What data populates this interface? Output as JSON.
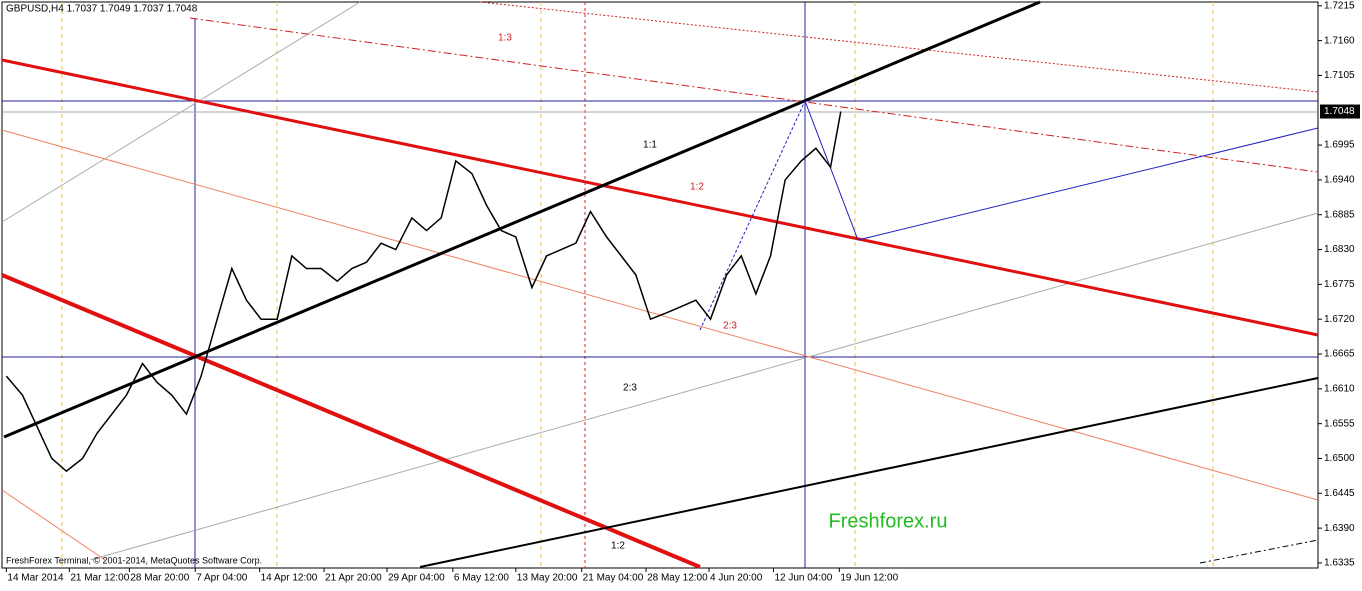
{
  "chart_data": {
    "type": "line",
    "title": "GBPUSD,H4  1.7037 1.7049 1.7037 1.7048",
    "footer": "FreshForex Terminal, © 2001-2014, MetaQuotes Software Corp.",
    "watermark": "Freshforex.ru",
    "annotations": [
      "1:3",
      "1:1",
      "1:2",
      "2:3",
      "2:3",
      "1:2"
    ],
    "last_price": 1.7048,
    "color": "#000000",
    "x": [
      3,
      14,
      24,
      34,
      44,
      55,
      65,
      75,
      85,
      96,
      106,
      116,
      126,
      136,
      147,
      157,
      167,
      177,
      188,
      198,
      208,
      218,
      229,
      239,
      249,
      259,
      269,
      280,
      290,
      300,
      310,
      321,
      331,
      341,
      351,
      362,
      372,
      382,
      392,
      402,
      413,
      423,
      433,
      443,
      454,
      464,
      474,
      484,
      495,
      505,
      515,
      525,
      535,
      546,
      556,
      566,
      573
    ],
    "values": [
      1.663,
      1.66,
      1.655,
      1.65,
      1.648,
      1.65,
      1.654,
      1.657,
      1.66,
      1.665,
      1.662,
      1.66,
      1.657,
      1.663,
      1.672,
      1.68,
      1.675,
      1.672,
      1.672,
      1.682,
      1.68,
      1.68,
      1.678,
      1.68,
      1.681,
      1.684,
      1.683,
      1.688,
      1.686,
      1.688,
      1.697,
      1.695,
      1.69,
      1.686,
      1.685,
      1.677,
      1.682,
      1.683,
      1.684,
      1.689,
      1.685,
      1.682,
      1.679,
      1.672,
      1.673,
      1.674,
      1.675,
      1.672,
      1.679,
      1.682,
      1.676,
      1.682,
      1.694,
      1.697,
      1.699,
      1.696,
      1.7048
    ],
    "xlim": [
      0,
      899
    ],
    "xticks": [
      {
        "value": 3,
        "label": "14 Mar 2014"
      },
      {
        "value": 46,
        "label": "21 Mar 12:00"
      },
      {
        "value": 87,
        "label": "28 Mar 20:00"
      },
      {
        "value": 132,
        "label": "7 Apr 04:00"
      },
      {
        "value": 176,
        "label": "14 Apr 12:00"
      },
      {
        "value": 220,
        "label": "21 Apr 20:00"
      },
      {
        "value": 263,
        "label": "29 Apr 04:00"
      },
      {
        "value": 308,
        "label": "6 May 12:00"
      },
      {
        "value": 351,
        "label": "13 May 20:00"
      },
      {
        "value": 396,
        "label": "21 May 04:00"
      },
      {
        "value": 440,
        "label": "28 May 12:00"
      },
      {
        "value": 483,
        "label": "4 Jun 20:00"
      },
      {
        "value": 527,
        "label": "12 Jun 04:00"
      },
      {
        "value": 572,
        "label": "19 Jun 12:00"
      }
    ],
    "ylim": [
      1.6327,
      1.7221
    ],
    "yticks": [
      1.7215,
      {
        "value": 1.716,
        "label": "1.7160"
      },
      1.7105,
      1.6995,
      {
        "value": 1.694,
        "label": "1.6940"
      },
      1.6885,
      {
        "value": 1.683,
        "label": "1.6830"
      },
      1.6775,
      {
        "value": 1.672,
        "label": "1.6720"
      },
      1.6665,
      {
        "value": 1.661,
        "label": "1.6610"
      },
      1.6555,
      {
        "value": 1.65,
        "label": "1.6500"
      },
      1.6445,
      {
        "value": 1.639,
        "label": "1.6390"
      },
      1.6335
    ]
  }
}
